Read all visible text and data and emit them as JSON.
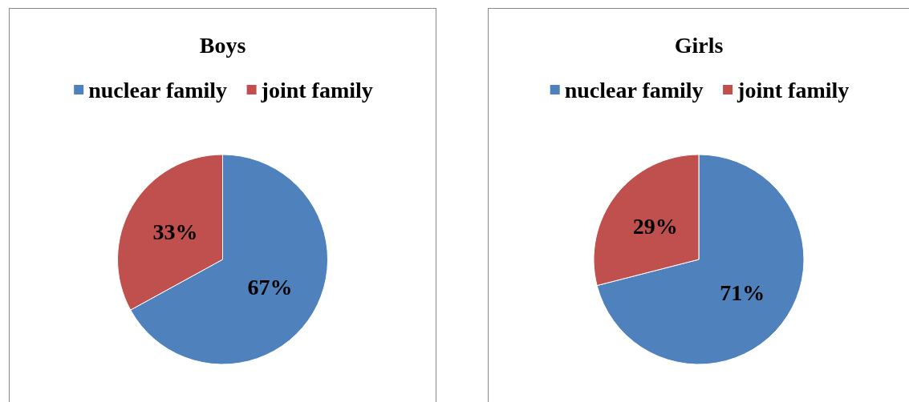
{
  "chart_data": [
    {
      "type": "pie",
      "title": "Boys",
      "categories": [
        "nuclear family",
        "joint family"
      ],
      "values": [
        67,
        33
      ],
      "colors": [
        "#4f81bd",
        "#c0504d"
      ],
      "value_labels": [
        "67%",
        "33%"
      ],
      "legend": "top"
    },
    {
      "type": "pie",
      "title": "Girls",
      "categories": [
        "nuclear family",
        "joint family"
      ],
      "values": [
        71,
        29
      ],
      "colors": [
        "#4f81bd",
        "#c0504d"
      ],
      "value_labels": [
        "71%",
        "29%"
      ],
      "legend": "top"
    }
  ]
}
